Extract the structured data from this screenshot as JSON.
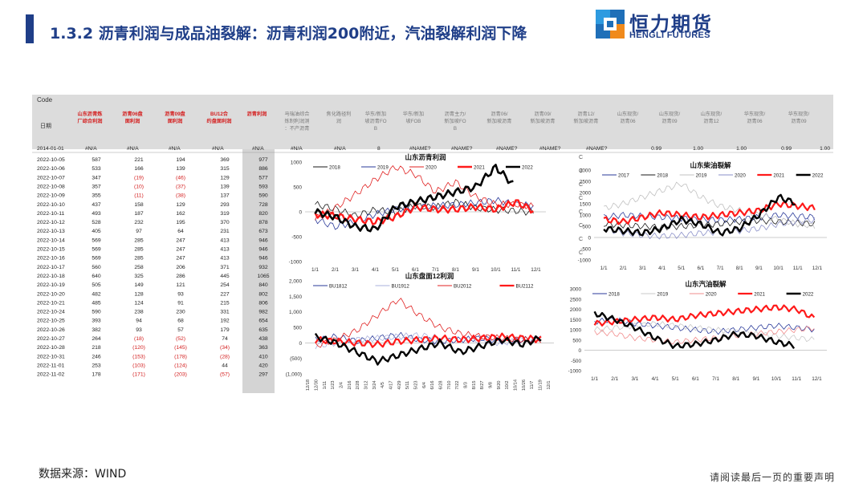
{
  "header": {
    "title": "1.3.2 沥青利润与成品油裂解：沥青利润200附近，汽油裂解利润下降",
    "logo_cn": "恒力期货",
    "logo_en": "HENGLI FUTURES"
  },
  "table": {
    "code_label": "Code",
    "date_label": "日期",
    "headers": [
      "山东沥青炼厂综合利润",
      "沥青06盘面利润",
      "沥青09盘面利润",
      "BU12合约盘面利润",
      "沥青利润",
      "马瑞油综合炼制利润测：不产沥青",
      "焦化路径利润",
      "华东/新加坡沥青FOB",
      "华东/新加坡FOB",
      "沥青主力/新加坡FOB",
      "沥青06/新加坡沥青",
      "沥青09/新加坡沥青",
      "沥青12/新加坡沥青",
      "山东现货/沥青06",
      "山东现货/沥青09",
      "山东现货/沥青12",
      "华东现货/沥青06",
      "华东现货/沥青09"
    ],
    "first_row": [
      "2014-01-01",
      "#N/A",
      "#N/A",
      "#N/A",
      "#N/A",
      "#N/A",
      "#N/A",
      "#N/A",
      "8",
      "#NAME?",
      "#NAME?",
      "#NAME?",
      "#NAME?",
      "#NAME?",
      "0.99",
      "1.00",
      "1.00",
      "0.99",
      "1.00"
    ],
    "rows": [
      [
        "2022-10-05",
        "587",
        "221",
        "194",
        "369",
        "977"
      ],
      [
        "2022-10-06",
        "533",
        "166",
        "139",
        "315",
        "886"
      ],
      [
        "2022-10-07",
        "347",
        "(19)",
        "(46)",
        "129",
        "577"
      ],
      [
        "2022-10-08",
        "357",
        "(10)",
        "(37)",
        "139",
        "593"
      ],
      [
        "2022-10-09",
        "355",
        "(11)",
        "(38)",
        "137",
        "590"
      ],
      [
        "2022-10-10",
        "437",
        "158",
        "129",
        "293",
        "728"
      ],
      [
        "2022-10-11",
        "493",
        "187",
        "162",
        "319",
        "820"
      ],
      [
        "2022-10-12",
        "528",
        "232",
        "195",
        "370",
        "878"
      ],
      [
        "2022-10-13",
        "405",
        "97",
        "64",
        "231",
        "673"
      ],
      [
        "2022-10-14",
        "569",
        "285",
        "247",
        "413",
        "946"
      ],
      [
        "2022-10-15",
        "569",
        "285",
        "247",
        "413",
        "946"
      ],
      [
        "2022-10-16",
        "569",
        "285",
        "247",
        "413",
        "946"
      ],
      [
        "2022-10-17",
        "560",
        "258",
        "206",
        "371",
        "932"
      ],
      [
        "2022-10-18",
        "640",
        "325",
        "286",
        "445",
        "1065"
      ],
      [
        "2022-10-19",
        "505",
        "149",
        "121",
        "254",
        "840"
      ],
      [
        "2022-10-20",
        "482",
        "128",
        "93",
        "227",
        "802"
      ],
      [
        "2022-10-21",
        "485",
        "124",
        "91",
        "215",
        "806"
      ],
      [
        "2022-10-24",
        "590",
        "238",
        "230",
        "331",
        "982"
      ],
      [
        "2022-10-25",
        "393",
        "94",
        "68",
        "192",
        "654"
      ],
      [
        "2022-10-26",
        "382",
        "93",
        "57",
        "179",
        "635"
      ],
      [
        "2022-10-27",
        "264",
        "(18)",
        "(52)",
        "74",
        "438"
      ],
      [
        "2022-10-28",
        "218",
        "(120)",
        "(145)",
        "(34)",
        "363"
      ],
      [
        "2022-10-31",
        "246",
        "(153)",
        "(178)",
        "(28)",
        "410"
      ],
      [
        "2022-11-01",
        "253",
        "(103)",
        "(124)",
        "44",
        "420"
      ],
      [
        "2022-11-02",
        "178",
        "(171)",
        "(203)",
        "(57)",
        "297"
      ]
    ],
    "side_marks": [
      "C",
      "C",
      "C",
      "C",
      "C",
      "C",
      "C",
      "C"
    ]
  },
  "chart_data": [
    {
      "type": "line",
      "title": "山东沥青利润",
      "x_ticks": [
        "1/1",
        "2/1",
        "3/1",
        "4/1",
        "5/1",
        "6/1",
        "7/1",
        "8/1",
        "9/1",
        "10/1",
        "11/1",
        "12/1"
      ],
      "ylim": [
        -1000,
        1000
      ],
      "y_ticks": [
        "1000",
        "500",
        "0",
        "-500",
        "-1000"
      ],
      "series": [
        {
          "name": "2018",
          "color": "#1a1a1a",
          "width": 0.8,
          "values": [
            150,
            60,
            -80,
            40,
            -10,
            120,
            90,
            200,
            80,
            40,
            20,
            -20
          ]
        },
        {
          "name": "2019",
          "color": "#2a3a9a",
          "width": 0.8,
          "values": [
            -150,
            -300,
            -200,
            -50,
            50,
            100,
            120,
            140,
            180,
            230,
            150,
            120
          ]
        },
        {
          "name": "2020",
          "color": "#e02020",
          "width": 0.8,
          "values": [
            -150,
            80,
            350,
            650,
            900,
            750,
            400,
            600,
            300,
            150,
            150,
            100
          ]
        },
        {
          "name": "2021",
          "color": "#ff1a1a",
          "width": 2.4,
          "values": [
            -50,
            -80,
            -150,
            -200,
            -100,
            100,
            50,
            50,
            100,
            50,
            200,
            0
          ]
        },
        {
          "name": "2022",
          "color": "#000000",
          "width": 2.6,
          "values": [
            0,
            -100,
            -300,
            -350,
            100,
            200,
            300,
            400,
            500,
            900,
            500,
            null
          ]
        }
      ]
    },
    {
      "type": "line",
      "title": "山东柴油裂解",
      "x_ticks": [
        "1/1",
        "2/1",
        "3/1",
        "4/1",
        "5/1",
        "6/1",
        "7/1",
        "8/1",
        "9/1",
        "10/1",
        "11/1",
        "12/1"
      ],
      "ylim": [
        -1000,
        3000
      ],
      "y_ticks": [
        "3000",
        "2500",
        "2000",
        "1500",
        "1000",
        "500",
        "0",
        "-500",
        "-1000"
      ],
      "series": [
        {
          "name": "2017",
          "color": "#2a3a9a",
          "width": 0.8,
          "values": [
            900,
            1000,
            950,
            900,
            850,
            800,
            780,
            820,
            900,
            1000,
            950,
            900
          ]
        },
        {
          "name": "2018",
          "color": "#1a1a1a",
          "width": 0.8,
          "values": [
            600,
            550,
            500,
            450,
            500,
            550,
            600,
            700,
            750,
            700,
            650,
            600
          ]
        },
        {
          "name": "2019",
          "color": "#c0c0c0",
          "width": 0.8,
          "values": [
            1300,
            1500,
            1800,
            2100,
            2400,
            1800,
            1400,
            1200,
            1000,
            800,
            600,
            500
          ]
        },
        {
          "name": "2020",
          "color": "#8a8fc8",
          "width": 0.8,
          "values": [
            400,
            200,
            100,
            50,
            100,
            200,
            250,
            300,
            400,
            600,
            700,
            800
          ]
        },
        {
          "name": "2021",
          "color": "#ff1a1a",
          "width": 2.2,
          "values": [
            800,
            700,
            900,
            1100,
            1000,
            900,
            1000,
            1100,
            1200,
            1500,
            1400,
            1300
          ]
        },
        {
          "name": "2022",
          "color": "#000000",
          "width": 2.4,
          "values": [
            400,
            300,
            200,
            400,
            800,
            600,
            200,
            400,
            1000,
            1800,
            1500,
            null
          ]
        }
      ]
    },
    {
      "type": "line",
      "title": "山东盘面12利润",
      "x_ticks": [
        "12/18",
        "12/30",
        "1/11",
        "1/23",
        "2/4",
        "2/16",
        "2/28",
        "3/12",
        "3/24",
        "4/5",
        "4/17",
        "4/29",
        "5/11",
        "5/23",
        "6/4",
        "6/16",
        "6/28",
        "7/10",
        "7/22",
        "8/3",
        "8/15",
        "8/27",
        "9/8",
        "9/20",
        "10/2",
        "10/14",
        "10/26",
        "11/7",
        "11/19",
        "12/1"
      ],
      "ylim": [
        -1000,
        2000
      ],
      "y_ticks": [
        "2,000",
        "1,500",
        "1,000",
        "500",
        "0",
        "(500)",
        "(1,000)"
      ],
      "series": [
        {
          "name": "BU1812",
          "color": "#2a3a9a",
          "width": 0.8,
          "values": [
            100,
            200,
            50,
            150,
            250,
            100,
            50,
            100,
            150,
            50,
            100,
            150
          ]
        },
        {
          "name": "BU1912",
          "color": "#aab0dd",
          "width": 0.8,
          "values": [
            -100,
            0,
            100,
            150,
            200,
            250,
            150,
            100,
            50,
            0,
            100,
            150
          ]
        },
        {
          "name": "BU2012",
          "color": "#e02020",
          "width": 0.8,
          "values": [
            -100,
            100,
            400,
            900,
            1400,
            900,
            500,
            300,
            200,
            150,
            100,
            100
          ]
        },
        {
          "name": "BU2112",
          "color": "#ff1a1a",
          "width": 2.2,
          "values": [
            100,
            50,
            0,
            -50,
            50,
            100,
            150,
            100,
            150,
            200,
            150,
            100
          ]
        },
        {
          "name": "",
          "color": "#000000",
          "width": 2.4,
          "values": [
            200,
            0,
            -300,
            -600,
            -400,
            -200,
            0,
            -300,
            -100,
            100,
            -50,
            200
          ]
        }
      ]
    },
    {
      "type": "line",
      "title": "山东汽油裂解",
      "x_ticks": [
        "1/1",
        "2/1",
        "3/1",
        "4/1",
        "5/1",
        "6/1",
        "7/1",
        "8/1",
        "9/1",
        "10/1",
        "11/1",
        "12/1"
      ],
      "ylim": [
        -1000,
        3000
      ],
      "y_ticks": [
        "3000",
        "2500",
        "2000",
        "1500",
        "1000",
        "500",
        "0",
        "-500",
        "-1000"
      ],
      "series": [
        {
          "name": "2018",
          "color": "#2a3a9a",
          "width": 0.8,
          "values": [
            1400,
            1500,
            1300,
            1200,
            1100,
            1000,
            900,
            1000,
            1100,
            1200,
            1100,
            1000
          ]
        },
        {
          "name": "2019",
          "color": "#c8c8c8",
          "width": 0.8,
          "values": [
            1000,
            1100,
            1200,
            1300,
            1200,
            1100,
            1000,
            900,
            800,
            700,
            600,
            500
          ]
        },
        {
          "name": "2020",
          "color": "#f28c8c",
          "width": 0.8,
          "values": [
            900,
            800,
            600,
            500,
            400,
            500,
            600,
            700,
            800,
            900,
            1000,
            1100
          ]
        },
        {
          "name": "2021",
          "color": "#ff1a1a",
          "width": 2.2,
          "values": [
            1300,
            1400,
            1500,
            1600,
            1500,
            1700,
            1800,
            1900,
            2000,
            2100,
            2000,
            1500
          ]
        },
        {
          "name": "2022",
          "color": "#000000",
          "width": 2.4,
          "values": [
            1800,
            1500,
            1100,
            600,
            200,
            300,
            500,
            800,
            700,
            400,
            200,
            null
          ]
        }
      ]
    }
  ],
  "footer": {
    "source": "数据来源：WIND",
    "note": "请阅读最后一页的重要声明"
  }
}
